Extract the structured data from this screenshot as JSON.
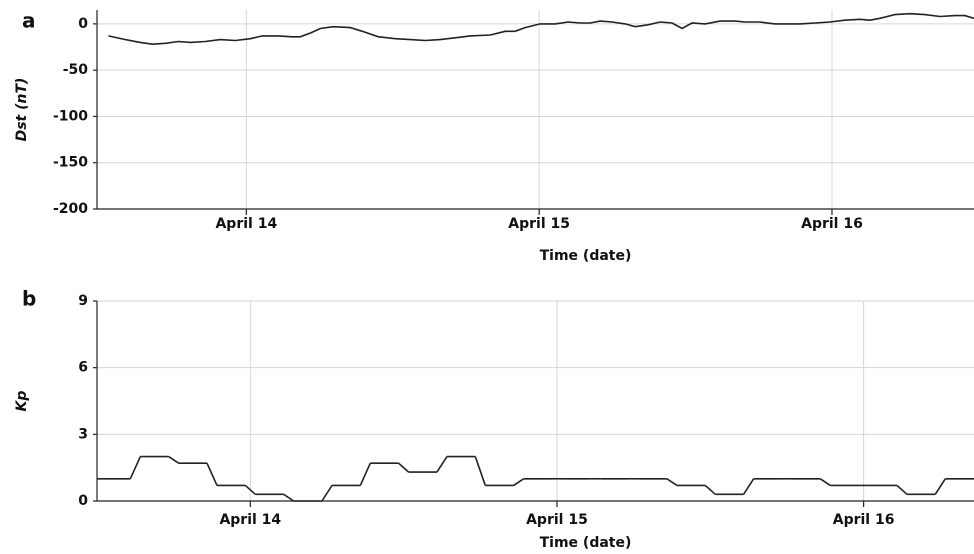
{
  "chart_data": [
    {
      "type": "line",
      "panel": "a",
      "ylabel": "Dst (nT)",
      "xlabel": "Time (date)",
      "color": "#222222",
      "grid": true,
      "xlim": [
        13.49,
        16.485
      ],
      "ylim": [
        -200,
        15
      ],
      "xticks": [
        {
          "value": 14,
          "label": "April 14"
        },
        {
          "value": 15,
          "label": "April 15"
        },
        {
          "value": 16,
          "label": "April 16"
        }
      ],
      "yticks": [
        -200,
        -150,
        -100,
        -50,
        0
      ],
      "x": [
        13.529,
        13.587,
        13.638,
        13.679,
        13.724,
        13.768,
        13.809,
        13.86,
        13.911,
        13.962,
        14.014,
        14.055,
        14.109,
        14.157,
        14.184,
        14.218,
        14.253,
        14.297,
        14.355,
        14.396,
        14.451,
        14.509,
        14.56,
        14.611,
        14.662,
        14.713,
        14.765,
        14.833,
        14.884,
        14.918,
        14.952,
        15.003,
        15.055,
        15.099,
        15.14,
        15.174,
        15.208,
        15.249,
        15.294,
        15.328,
        15.372,
        15.413,
        15.454,
        15.488,
        15.522,
        15.567,
        15.618,
        15.669,
        15.703,
        15.754,
        15.805,
        15.857,
        15.891,
        15.942,
        15.993,
        16.044,
        16.096,
        16.13,
        16.164,
        16.215,
        16.266,
        16.317,
        16.369,
        16.42,
        16.454,
        16.485
      ],
      "values": [
        -13,
        -17,
        -20,
        -22,
        -21,
        -19,
        -20,
        -19,
        -17,
        -18,
        -16,
        -13,
        -13,
        -14,
        -14,
        -10,
        -5,
        -3,
        -4,
        -8,
        -14,
        -16,
        -17,
        -18,
        -17,
        -15,
        -13,
        -12,
        -8,
        -8,
        -4,
        0,
        0,
        2,
        1,
        1,
        3,
        2,
        0,
        -3,
        -1,
        2,
        1,
        -5,
        1,
        0,
        3,
        3,
        2,
        2,
        0,
        0,
        0,
        1,
        2,
        4,
        5,
        4,
        6,
        10,
        11,
        10,
        8,
        9,
        9,
        6
      ]
    },
    {
      "type": "step",
      "panel": "b",
      "ylabel": "Kp",
      "xlabel": "Time (date)",
      "color": "#222222",
      "grid": true,
      "xlim": [
        13.5,
        16.36
      ],
      "ylim": [
        0,
        9
      ],
      "xticks": [
        {
          "value": 14,
          "label": "April 14"
        },
        {
          "value": 15,
          "label": "April 15"
        },
        {
          "value": 16,
          "label": "April 16"
        }
      ],
      "yticks": [
        0,
        3,
        6,
        9
      ],
      "x": [
        13.5,
        13.625,
        13.75,
        13.875,
        14.0,
        14.125,
        14.25,
        14.375,
        14.5,
        14.625,
        14.75,
        14.875,
        15.0,
        15.125,
        15.25,
        15.375,
        15.5,
        15.625,
        15.75,
        15.875,
        16.0,
        16.125,
        16.25
      ],
      "values": [
        1,
        2,
        1.7,
        0.7,
        0.3,
        0,
        0.7,
        1.7,
        1.3,
        2,
        0.7,
        1,
        1,
        1,
        1,
        0.7,
        0.3,
        1,
        1,
        0.7,
        0.7,
        0.3,
        1
      ]
    }
  ]
}
